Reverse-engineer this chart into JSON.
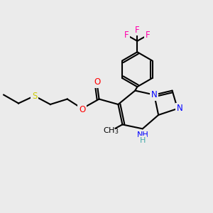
{
  "background_color": "#ebebeb",
  "atom_colors": {
    "C": "#000000",
    "N": "#0000ff",
    "O": "#ff0000",
    "S": "#cccc00",
    "F": "#ff00aa",
    "H": "#000000"
  },
  "bond_color": "#000000",
  "bond_width": 1.5,
  "font_size": 8.5,
  "figsize": [
    3.0,
    3.0
  ],
  "dpi": 100
}
